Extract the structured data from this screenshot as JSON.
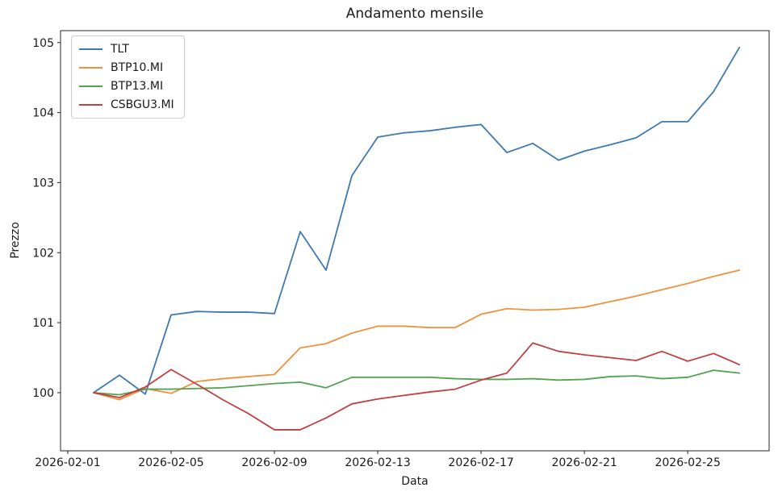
{
  "chart_data": {
    "type": "line",
    "title": "Andamento mensile",
    "xlabel": "Data",
    "ylabel": "Prezzo",
    "grid": false,
    "legend_position": "upper-left",
    "axis_color": "#262626",
    "text_color": "#1a1a1a",
    "categories": [
      "2026-02-02",
      "2026-02-03",
      "2026-02-04",
      "2026-02-05",
      "2026-02-06",
      "2026-02-07",
      "2026-02-08",
      "2026-02-09",
      "2026-02-10",
      "2026-02-11",
      "2026-02-12",
      "2026-02-13",
      "2026-02-14",
      "2026-02-15",
      "2026-02-16",
      "2026-02-17",
      "2026-02-18",
      "2026-02-19",
      "2026-02-20",
      "2026-02-21",
      "2026-02-22",
      "2026-02-23",
      "2026-02-24",
      "2026-02-25",
      "2026-02-26",
      "2026-02-27"
    ],
    "series": [
      {
        "name": "TLT",
        "color": "#3e79b4",
        "values": [
          100.0,
          100.25,
          99.98,
          101.11,
          101.16,
          101.15,
          101.15,
          101.13,
          102.3,
          101.75,
          103.1,
          103.65,
          103.71,
          103.74,
          103.79,
          103.83,
          103.43,
          103.56,
          103.32,
          103.45,
          103.54,
          103.64,
          103.87,
          103.87,
          104.3,
          104.93
        ]
      },
      {
        "name": "BTP10.MI",
        "color": "#f0913e",
        "values": [
          100.0,
          99.9,
          100.06,
          99.99,
          100.16,
          100.2,
          100.23,
          100.26,
          100.64,
          100.7,
          100.85,
          100.95,
          100.95,
          100.93,
          100.93,
          101.12,
          101.2,
          101.18,
          101.19,
          101.22,
          101.3,
          101.38,
          101.47,
          101.56,
          101.66,
          101.75
        ]
      },
      {
        "name": "BTP13.MI",
        "color": "#52a352",
        "values": [
          100.0,
          99.97,
          100.05,
          100.05,
          100.06,
          100.07,
          100.1,
          100.13,
          100.15,
          100.07,
          100.22,
          100.22,
          100.22,
          100.22,
          100.2,
          100.19,
          100.19,
          100.2,
          100.18,
          100.19,
          100.23,
          100.24,
          100.2,
          100.22,
          100.32,
          100.28
        ]
      },
      {
        "name": "CSBGU3.MI",
        "color": "#c04142",
        "values": [
          100.0,
          99.93,
          100.08,
          100.33,
          100.12,
          99.9,
          99.7,
          99.47,
          99.47,
          99.64,
          99.84,
          99.91,
          99.96,
          100.01,
          100.05,
          100.18,
          100.28,
          100.71,
          100.59,
          100.54,
          100.5,
          100.46,
          100.59,
          100.45,
          100.56,
          100.4
        ]
      }
    ],
    "x_ticks": [
      {
        "day": 1,
        "label": "2026-02-01"
      },
      {
        "day": 5,
        "label": "2026-02-05"
      },
      {
        "day": 9,
        "label": "2026-02-09"
      },
      {
        "day": 13,
        "label": "2026-02-13"
      },
      {
        "day": 17,
        "label": "2026-02-17"
      },
      {
        "day": 21,
        "label": "2026-02-21"
      },
      {
        "day": 25,
        "label": "2026-02-25"
      }
    ],
    "y_ticks": [
      100,
      101,
      102,
      103,
      104,
      105
    ],
    "ylim": [
      99.17,
      105.17
    ],
    "xlim_days": [
      0.72,
      28.15
    ]
  }
}
